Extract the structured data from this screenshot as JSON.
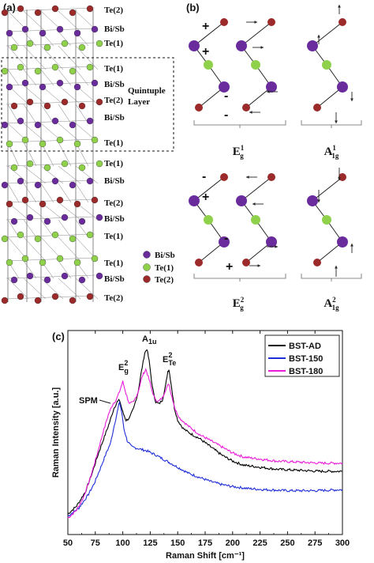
{
  "panels": {
    "a": {
      "label": "(a)",
      "layer_labels": [
        "Te(2)",
        "Bi/Sb",
        "Te(1)",
        "Te(1)",
        "Bi/Sb",
        "Te(2)",
        "Bi/Sb",
        "Te(1)",
        "Te(1)",
        "Bi/Sb",
        "Te(2)",
        "Bi/Sb",
        "Te(1)",
        "Te(1)",
        "Bi/Sb",
        "Te(2)"
      ],
      "quintuple_label": [
        "Quintuple",
        "Layer"
      ],
      "legend": [
        {
          "label": "Bi/Sb",
          "color": "#6a2c9c"
        },
        {
          "label": "Te(1)",
          "color": "#8fd14a"
        },
        {
          "label": "Te(2)",
          "color": "#9c2a2a"
        }
      ]
    },
    "b": {
      "label": "(b)",
      "modes": [
        {
          "main": "E",
          "sup": "1",
          "sub": "g"
        },
        {
          "main": "A",
          "sup": "1",
          "sub": "1g"
        },
        {
          "main": "E",
          "sup": "2",
          "sub": "g"
        },
        {
          "main": "A",
          "sup": "2",
          "sub": "1g"
        }
      ],
      "signs_top": [
        "+",
        "+",
        "-",
        "-"
      ],
      "signs_bottom": [
        "-",
        "+",
        "-",
        "+"
      ]
    },
    "c": {
      "label": "(c)",
      "annotations": [
        {
          "text": "SPM",
          "x": 97
        },
        {
          "text": "E",
          "sup": "2",
          "sub": "g",
          "x": 100
        },
        {
          "text": "A",
          "sub": "1u",
          "x": 121
        },
        {
          "text": "E",
          "sup": "2",
          "sub": "Te",
          "x": 142
        }
      ]
    }
  },
  "colors": {
    "bisb": "#6a2c9c",
    "te1": "#8fd14a",
    "te2": "#9c2a2a"
  },
  "chart_data": {
    "type": "line",
    "xlabel": "Raman Shift [cm⁻¹]",
    "ylabel": "Raman Intensity [a.u.]",
    "xlim": [
      50,
      300
    ],
    "ylim": [
      0,
      1
    ],
    "xticks": [
      50,
      75,
      100,
      125,
      150,
      175,
      200,
      225,
      250,
      275,
      300
    ],
    "legend_position": "top-right",
    "series": [
      {
        "name": "BST-AD",
        "color": "#000000",
        "points": [
          [
            50,
            0.1
          ],
          [
            58,
            0.14
          ],
          [
            66,
            0.21
          ],
          [
            72,
            0.3
          ],
          [
            78,
            0.4
          ],
          [
            84,
            0.49
          ],
          [
            88,
            0.55
          ],
          [
            92,
            0.62
          ],
          [
            95,
            0.65
          ],
          [
            97,
            0.66
          ],
          [
            100,
            0.6
          ],
          [
            103,
            0.56
          ],
          [
            106,
            0.57
          ],
          [
            110,
            0.62
          ],
          [
            114,
            0.7
          ],
          [
            117,
            0.8
          ],
          [
            120,
            0.89
          ],
          [
            122,
            0.91
          ],
          [
            124,
            0.85
          ],
          [
            127,
            0.72
          ],
          [
            130,
            0.65
          ],
          [
            133,
            0.64
          ],
          [
            136,
            0.66
          ],
          [
            139,
            0.73
          ],
          [
            141,
            0.8
          ],
          [
            142,
            0.81
          ],
          [
            144,
            0.74
          ],
          [
            147,
            0.62
          ],
          [
            150,
            0.56
          ],
          [
            155,
            0.52
          ],
          [
            160,
            0.5
          ],
          [
            170,
            0.47
          ],
          [
            180,
            0.43
          ],
          [
            190,
            0.39
          ],
          [
            200,
            0.36
          ],
          [
            210,
            0.34
          ],
          [
            225,
            0.33
          ],
          [
            240,
            0.32
          ],
          [
            260,
            0.315
          ],
          [
            280,
            0.31
          ],
          [
            300,
            0.31
          ]
        ]
      },
      {
        "name": "BST-150",
        "color": "#1f2ed6",
        "points": [
          [
            50,
            0.09
          ],
          [
            60,
            0.13
          ],
          [
            68,
            0.19
          ],
          [
            74,
            0.25
          ],
          [
            80,
            0.33
          ],
          [
            85,
            0.4
          ],
          [
            89,
            0.45
          ],
          [
            92,
            0.53
          ],
          [
            95,
            0.6
          ],
          [
            97,
            0.65
          ],
          [
            99,
            0.6
          ],
          [
            101,
            0.52
          ],
          [
            104,
            0.46
          ],
          [
            108,
            0.43
          ],
          [
            115,
            0.42
          ],
          [
            122,
            0.41
          ],
          [
            130,
            0.39
          ],
          [
            140,
            0.36
          ],
          [
            150,
            0.33
          ],
          [
            160,
            0.3
          ],
          [
            170,
            0.28
          ],
          [
            180,
            0.26
          ],
          [
            190,
            0.245
          ],
          [
            200,
            0.235
          ],
          [
            215,
            0.225
          ],
          [
            230,
            0.22
          ],
          [
            250,
            0.215
          ],
          [
            275,
            0.215
          ],
          [
            300,
            0.22
          ]
        ]
      },
      {
        "name": "BST-180",
        "color": "#ea1cd9",
        "points": [
          [
            50,
            0.08
          ],
          [
            58,
            0.12
          ],
          [
            64,
            0.18
          ],
          [
            70,
            0.27
          ],
          [
            76,
            0.38
          ],
          [
            82,
            0.5
          ],
          [
            87,
            0.59
          ],
          [
            91,
            0.64
          ],
          [
            94,
            0.66
          ],
          [
            97,
            0.7
          ],
          [
            100,
            0.75
          ],
          [
            103,
            0.69
          ],
          [
            106,
            0.64
          ],
          [
            110,
            0.65
          ],
          [
            114,
            0.7
          ],
          [
            118,
            0.78
          ],
          [
            121,
            0.81
          ],
          [
            124,
            0.76
          ],
          [
            128,
            0.68
          ],
          [
            132,
            0.65
          ],
          [
            136,
            0.67
          ],
          [
            139,
            0.71
          ],
          [
            142,
            0.74
          ],
          [
            144,
            0.69
          ],
          [
            148,
            0.61
          ],
          [
            152,
            0.57
          ],
          [
            160,
            0.53
          ],
          [
            170,
            0.49
          ],
          [
            180,
            0.46
          ],
          [
            190,
            0.43
          ],
          [
            200,
            0.4
          ],
          [
            210,
            0.38
          ],
          [
            225,
            0.37
          ],
          [
            240,
            0.36
          ],
          [
            260,
            0.355
          ],
          [
            280,
            0.35
          ],
          [
            300,
            0.35
          ]
        ]
      }
    ]
  }
}
